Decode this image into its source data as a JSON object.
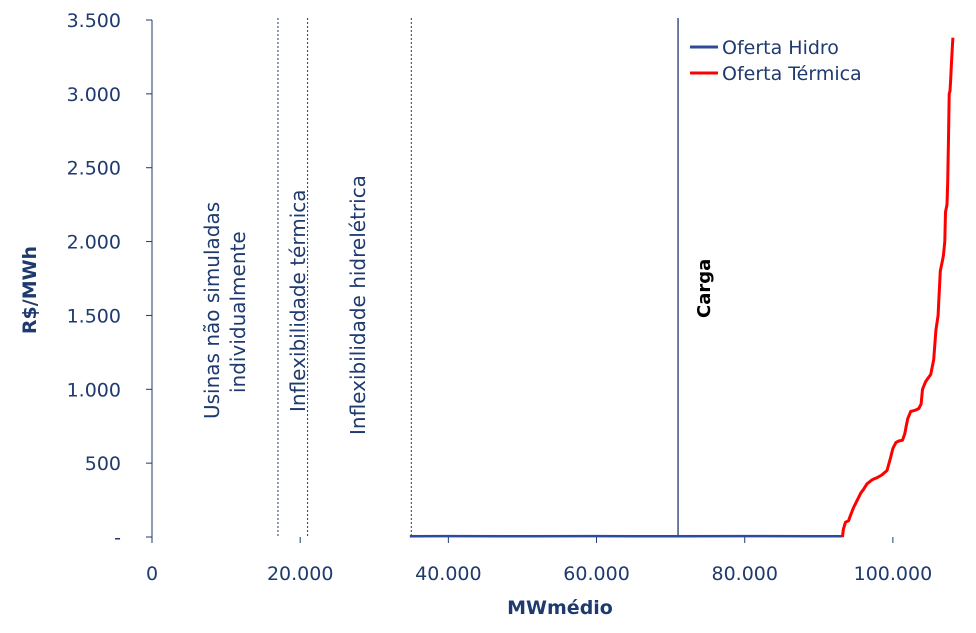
{
  "chart_data": {
    "type": "line",
    "xlabel": "MWmédio",
    "ylabel": "R$/MWh",
    "xlim": [
      0,
      110000
    ],
    "ylim": [
      0,
      3500
    ],
    "x_ticks": [
      {
        "value": 0,
        "label": "0"
      },
      {
        "value": 20000,
        "label": "20.000"
      },
      {
        "value": 40000,
        "label": "40.000"
      },
      {
        "value": 60000,
        "label": "60.000"
      },
      {
        "value": 80000,
        "label": "80.000"
      },
      {
        "value": 100000,
        "label": "100.000"
      }
    ],
    "y_ticks": [
      {
        "value": 0,
        "label": "-"
      },
      {
        "value": 500,
        "label": "500"
      },
      {
        "value": 1000,
        "label": "1.000"
      },
      {
        "value": 1500,
        "label": "1.500"
      },
      {
        "value": 2000,
        "label": "2.000"
      },
      {
        "value": 2500,
        "label": "2.500"
      },
      {
        "value": 3000,
        "label": "3.000"
      },
      {
        "value": 3500,
        "label": "3.500"
      }
    ],
    "legend_position": "top-right",
    "series": [
      {
        "name": "Oferta Hidro",
        "color": "#2e4a9e",
        "x": [
          34800,
          40000,
          50000,
          60000,
          70000,
          80000,
          90000,
          93200
        ],
        "y": [
          5,
          6,
          5,
          6,
          5,
          6,
          5,
          5
        ]
      },
      {
        "name": "Oferta Térmica",
        "color": "#ff0000",
        "x": [
          93200,
          93300,
          93600,
          94000,
          94300,
          94700,
          95200,
          95700,
          96000,
          96500,
          97000,
          97300,
          97800,
          98500,
          99200,
          99600,
          100000,
          100400,
          100800,
          101300,
          101600,
          101800,
          102000,
          102400,
          102800,
          103100,
          103500,
          103800,
          104000,
          104400,
          104800,
          105100,
          105300,
          105500,
          105800,
          106100,
          106200,
          106400,
          106600,
          106800,
          107000,
          107100,
          107300,
          107400,
          107500,
          107600,
          107700,
          107800,
          107900,
          108000,
          108100
        ],
        "y": [
          0,
          50,
          100,
          110,
          150,
          200,
          250,
          300,
          320,
          360,
          380,
          390,
          400,
          420,
          450,
          520,
          600,
          640,
          650,
          655,
          700,
          750,
          800,
          850,
          855,
          860,
          870,
          900,
          1000,
          1050,
          1080,
          1100,
          1150,
          1200,
          1400,
          1500,
          1600,
          1800,
          1850,
          1900,
          2000,
          2200,
          2250,
          2400,
          2700,
          3000,
          3020,
          3100,
          3200,
          3300,
          3380
        ]
      }
    ],
    "vertical_lines": [
      {
        "x": 17000,
        "label": "Usinas não simuladas"
      },
      {
        "x": 21000,
        "label": "individualmente"
      },
      {
        "x": 35000,
        "label": "Inflexibilidade térmica"
      },
      {
        "x": 71000,
        "label": "Inflexibilidade hidrelétrica"
      }
    ],
    "annotations": {
      "carga": "Carga"
    }
  }
}
